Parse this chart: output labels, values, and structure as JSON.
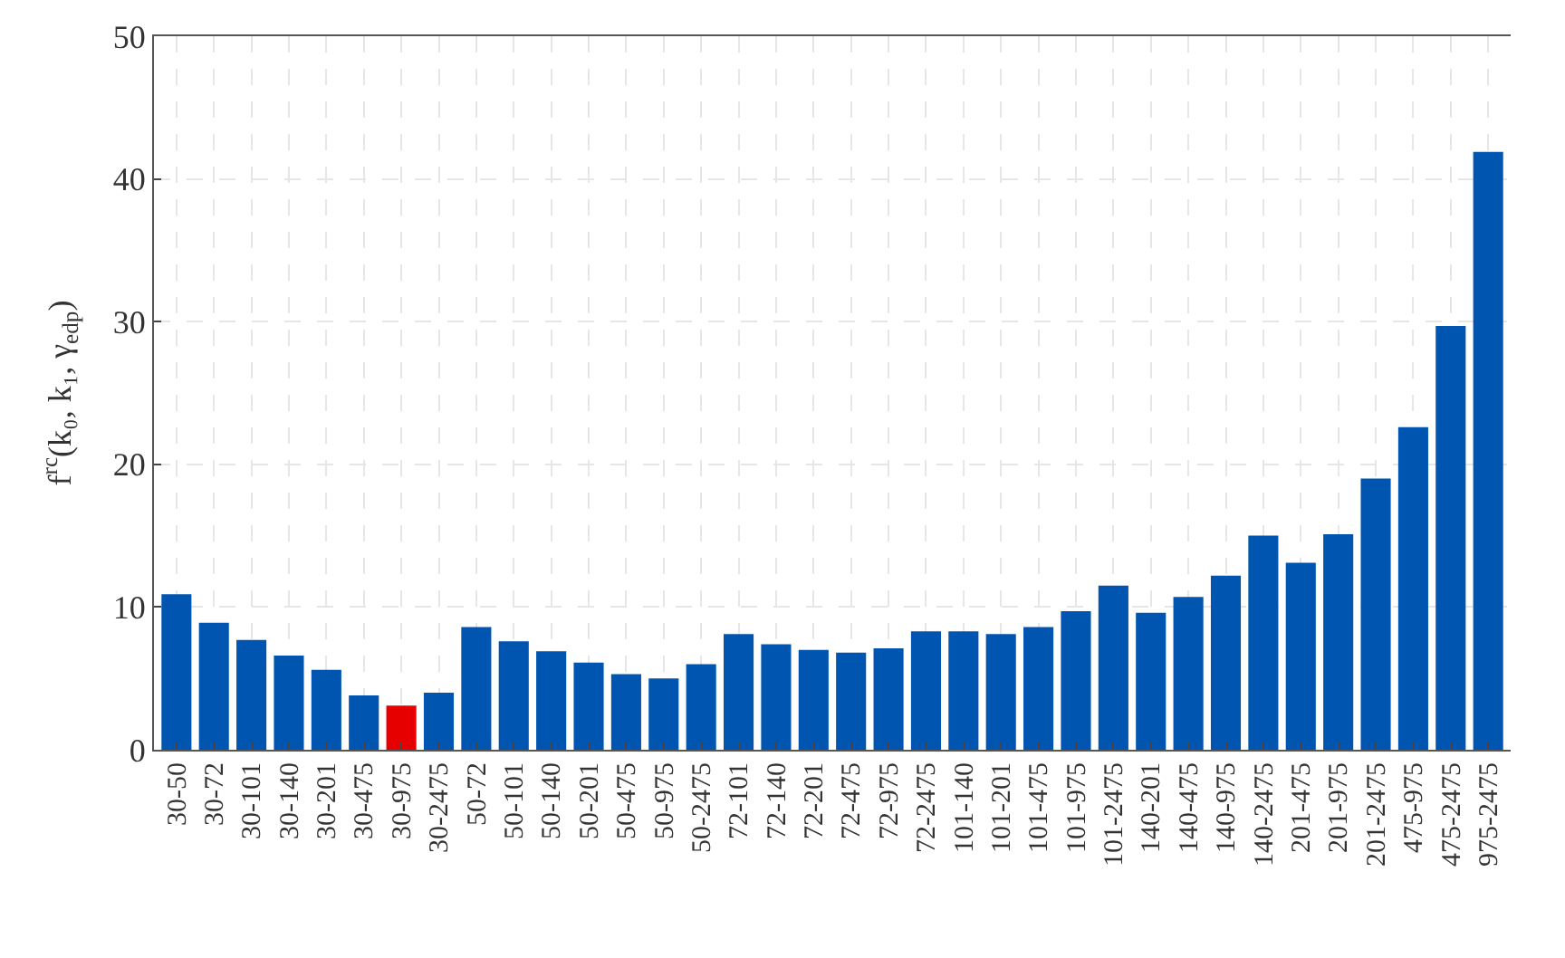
{
  "chart_data": {
    "type": "bar",
    "ylabel": "f$^{rc}$(k₀, k₁, γ$_{edp}$)",
    "categories": [
      "30-50",
      "30-72",
      "30-101",
      "30-140",
      "30-201",
      "30-475",
      "30-975",
      "30-2475",
      "50-72",
      "50-101",
      "50-140",
      "50-201",
      "50-475",
      "50-975",
      "50-2475",
      "72-101",
      "72-140",
      "72-201",
      "72-475",
      "72-975",
      "72-2475",
      "101-140",
      "101-201",
      "101-475",
      "101-975",
      "101-2475",
      "140-201",
      "140-475",
      "140-975",
      "140-2475",
      "201-475",
      "201-975",
      "201-2475",
      "475-975",
      "475-2475",
      "975-2475"
    ],
    "values": [
      10.9,
      8.9,
      7.7,
      6.6,
      5.6,
      3.8,
      3.1,
      4.0,
      8.6,
      7.6,
      6.9,
      6.1,
      5.3,
      5.0,
      6.0,
      8.1,
      7.4,
      7.0,
      6.8,
      7.1,
      8.3,
      8.3,
      8.1,
      8.6,
      9.7,
      11.5,
      9.6,
      10.7,
      12.2,
      15.0,
      13.1,
      15.1,
      19.0,
      22.6,
      29.7,
      41.9
    ],
    "colors": [
      "#0055b0",
      "#0055b0",
      "#0055b0",
      "#0055b0",
      "#0055b0",
      "#0055b0",
      "#e60000",
      "#0055b0",
      "#0055b0",
      "#0055b0",
      "#0055b0",
      "#0055b0",
      "#0055b0",
      "#0055b0",
      "#0055b0",
      "#0055b0",
      "#0055b0",
      "#0055b0",
      "#0055b0",
      "#0055b0",
      "#0055b0",
      "#0055b0",
      "#0055b0",
      "#0055b0",
      "#0055b0",
      "#0055b0",
      "#0055b0",
      "#0055b0",
      "#0055b0",
      "#0055b0",
      "#0055b0",
      "#0055b0",
      "#0055b0",
      "#0055b0",
      "#0055b0",
      "#0055b0"
    ],
    "ylim": [
      0,
      50
    ],
    "yticks": [
      0,
      10,
      20,
      30,
      40,
      50
    ],
    "grid": true
  }
}
